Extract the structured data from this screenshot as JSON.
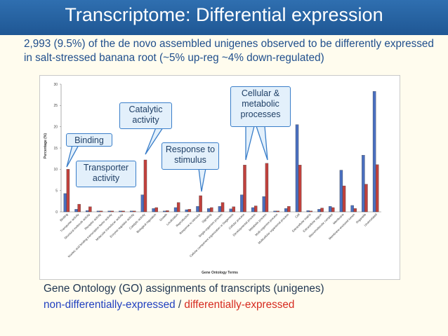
{
  "slide": {
    "title": "Transcriptome:  Differential expression",
    "subtitle": "2,993 (9.5%) of the de novo assembled unigenes observed to be differently expressed in salt-stressed banana root (~5% up-reg ~4% down-regulated)",
    "caption": "Gene Ontology (GO) assignments of transcripts (unigenes)",
    "legend_non": "non-differentially-expressed",
    "legend_sep": " / ",
    "legend_diff": "differentially-expressed"
  },
  "callouts": [
    {
      "text": "Binding"
    },
    {
      "text": "Transporter activity"
    },
    {
      "text": "Catalytic activity"
    },
    {
      "text": "Response to stimulus"
    },
    {
      "text": "Cellular & metabolic processes"
    }
  ],
  "chart_data": {
    "type": "bar",
    "xlabel": "Gene Ontology Terms",
    "ylabel": "Percentage (%)",
    "ylim": [
      0,
      30
    ],
    "yticks": [
      0,
      5,
      10,
      15,
      20,
      25,
      30
    ],
    "colors": {
      "non": "#4a6fbf",
      "diff": "#c0413d"
    },
    "categories": [
      "Binding",
      "Transporter activity",
      "Structural molecule activity",
      "Receptor activity",
      "Nucleic acid binding transcription factor activity",
      "Molecular transducer activity",
      "Enzyme regulator activity",
      "Catalytic activity",
      "Biological regulation",
      "Growth",
      "Localization",
      "Reproduction",
      "Response to stimulus",
      "Signaling",
      "Single-organism process",
      "Cellular component organization or biogenesis",
      "Cellular process",
      "Developmental process",
      "Metabolic process",
      "Multi-organism process",
      "Multicellular organismal process",
      "Cell",
      "Extracellular matrix",
      "Extracellular region",
      "Macromolecular complex",
      "Membrane",
      "Membrane-enclosed lumen",
      "Organelle",
      "Unannotated"
    ],
    "series": [
      {
        "values": [
          4.3,
          0.6,
          0.3,
          0.2,
          0.2,
          0.2,
          0.2,
          4.0,
          0.8,
          0.2,
          1.0,
          0.5,
          1.3,
          0.8,
          1.3,
          0.7,
          4.0,
          1.0,
          3.6,
          0.2,
          0.8,
          20.5,
          0.3,
          0.6,
          1.3,
          9.8,
          1.5,
          13.3,
          28.3
        ]
      },
      {
        "values": [
          10.0,
          1.8,
          1.2,
          0.2,
          0.2,
          0.2,
          0.2,
          12.2,
          1.0,
          0.3,
          2.2,
          0.6,
          3.8,
          1.0,
          2.2,
          1.2,
          11.0,
          1.4,
          11.4,
          0.2,
          1.3,
          11.0,
          0.2,
          0.9,
          1.0,
          6.1,
          0.8,
          6.5,
          11.1
        ]
      }
    ]
  }
}
